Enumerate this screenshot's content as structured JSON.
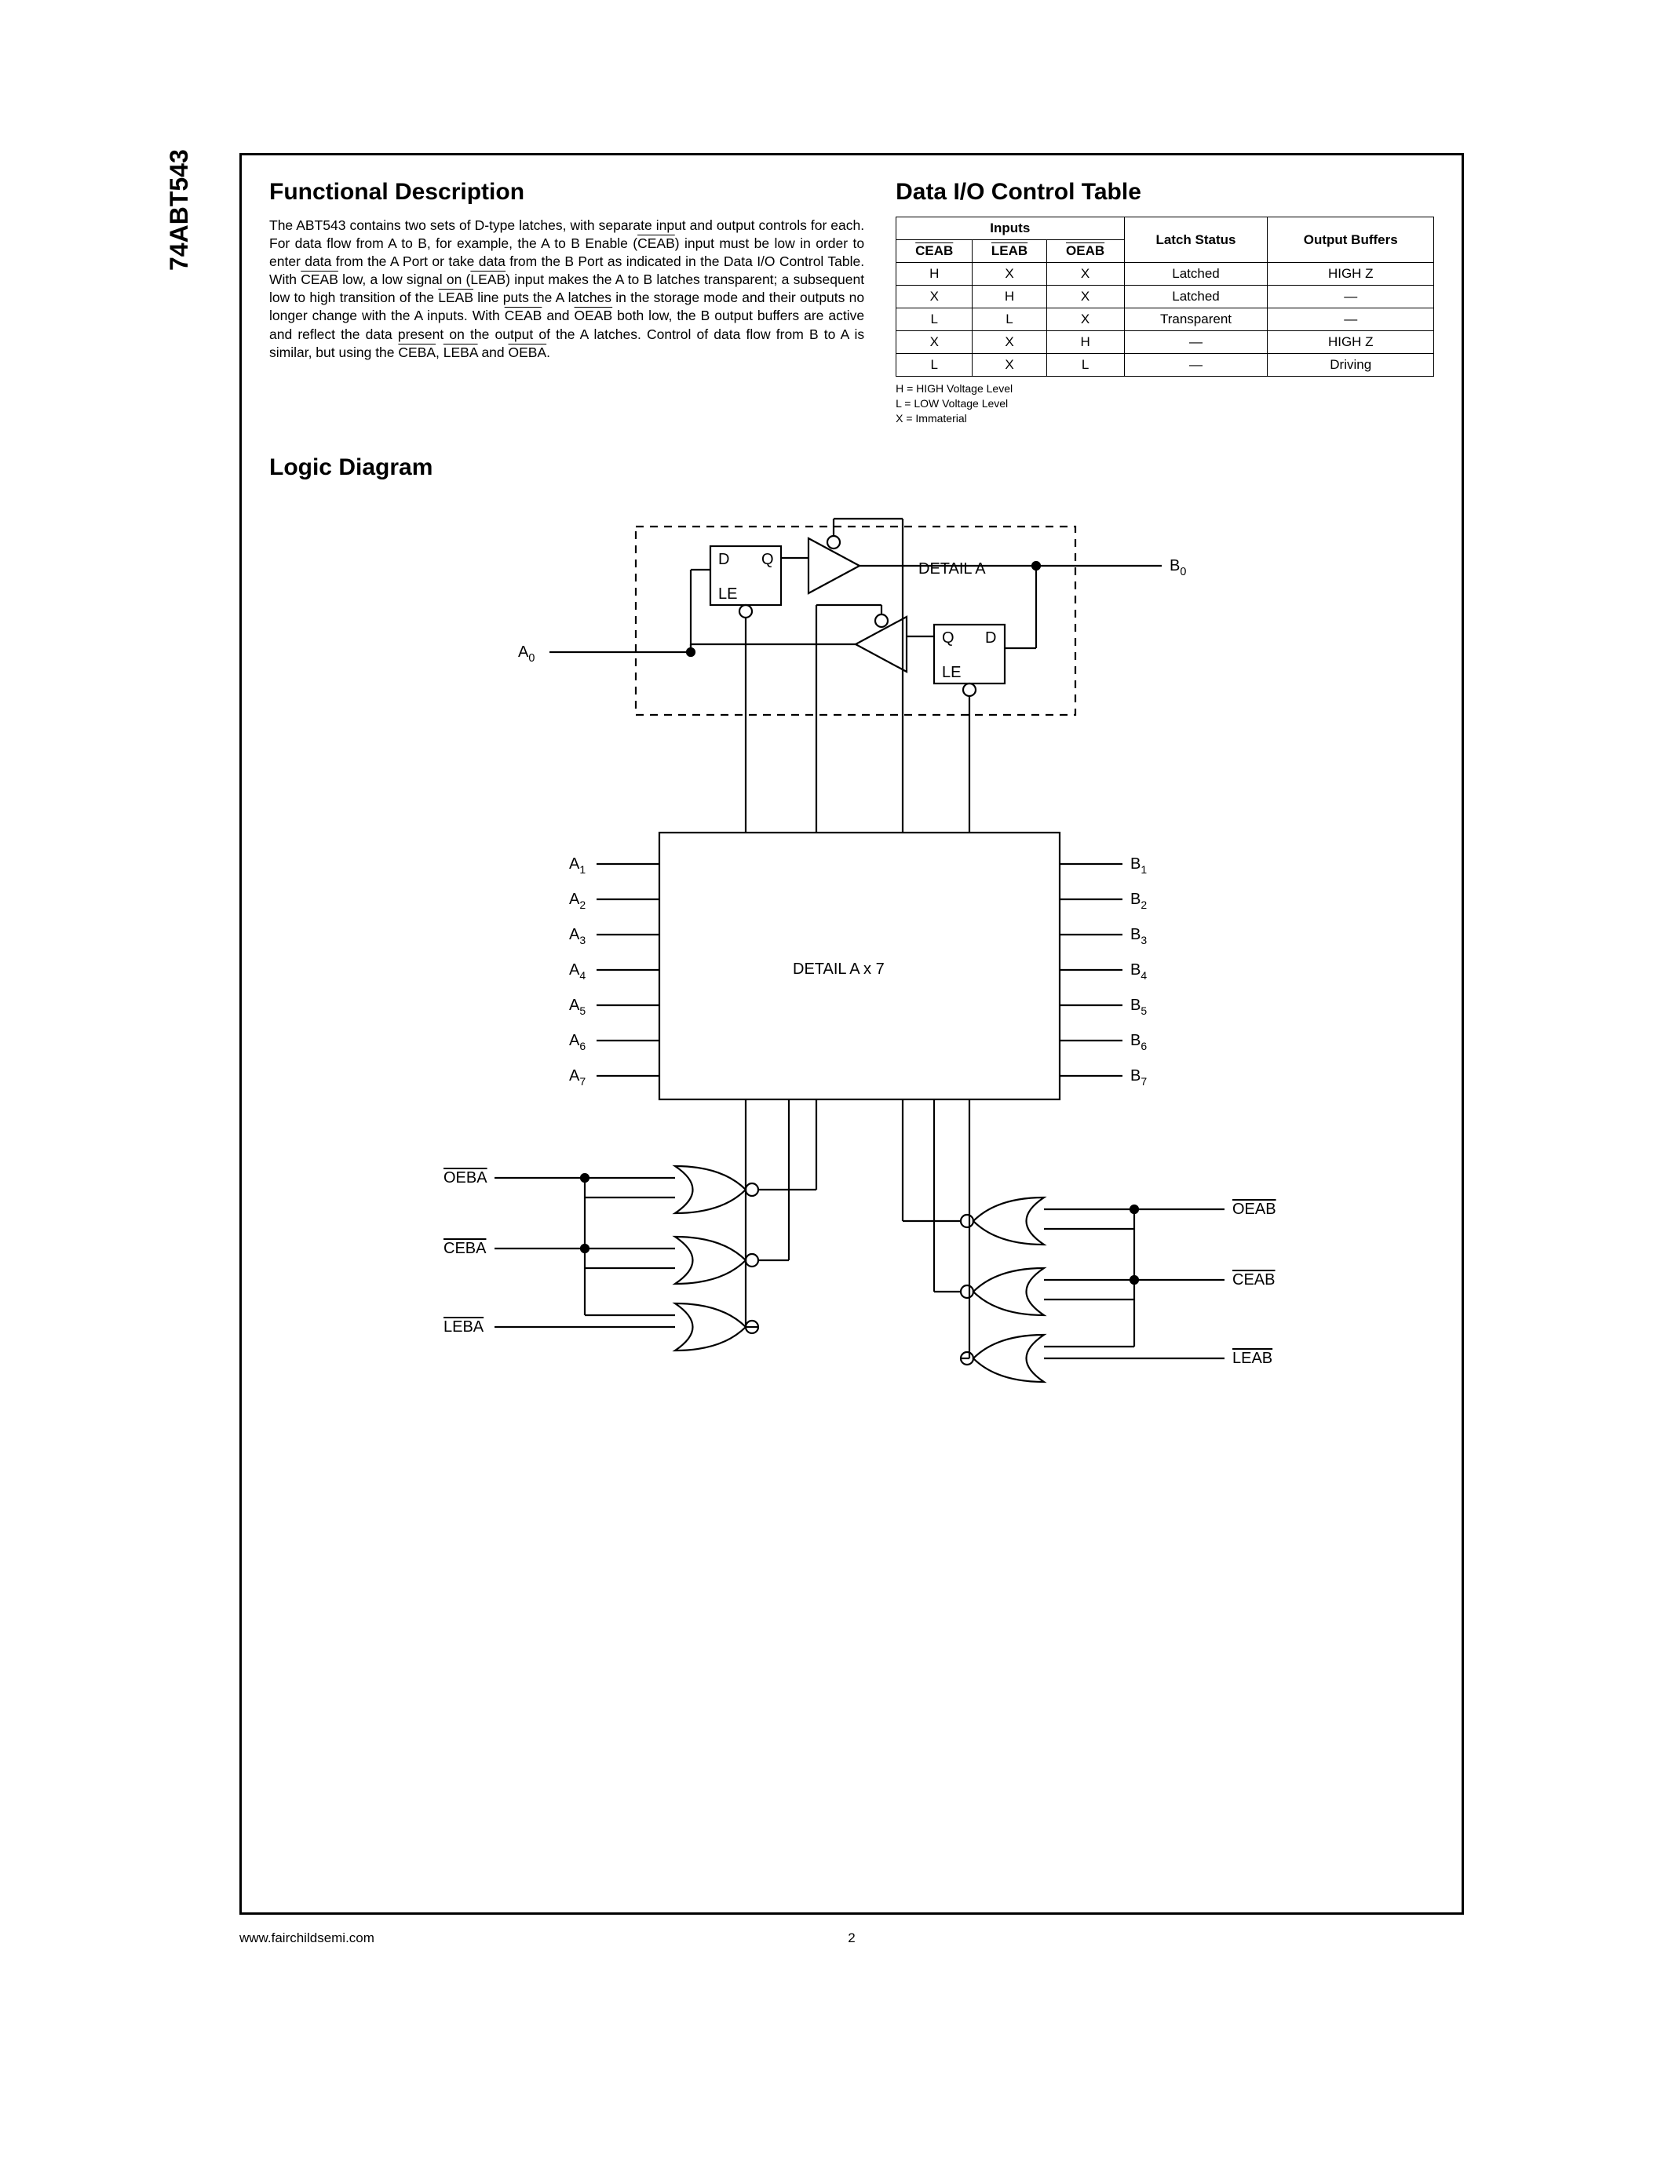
{
  "part_number": "74ABT543",
  "page_number": "2",
  "footer_url": "www.fairchildsemi.com",
  "sections": {
    "functional_description": {
      "heading": "Functional Description"
    },
    "data_io_table": {
      "heading": "Data I/O Control Table",
      "group_headers": [
        "Inputs",
        "Latch Status",
        "Output Buffers"
      ],
      "input_cols": [
        "CEAB",
        "LEAB",
        "OEAB"
      ],
      "rows": [
        {
          "ceab": "H",
          "leab": "X",
          "oeab": "X",
          "latch": "Latched",
          "out": "HIGH Z"
        },
        {
          "ceab": "X",
          "leab": "H",
          "oeab": "X",
          "latch": "Latched",
          "out": "—"
        },
        {
          "ceab": "L",
          "leab": "L",
          "oeab": "X",
          "latch": "Transparent",
          "out": "—"
        },
        {
          "ceab": "X",
          "leab": "X",
          "oeab": "H",
          "latch": "—",
          "out": "HIGH Z"
        },
        {
          "ceab": "L",
          "leab": "X",
          "oeab": "L",
          "latch": "—",
          "out": "Driving"
        }
      ],
      "legend": [
        "H = HIGH Voltage Level",
        "L = LOW Voltage Level",
        "X = Immaterial"
      ]
    },
    "logic_diagram": {
      "heading": "Logic Diagram",
      "detail_label": "DETAIL A",
      "block_label": "DETAIL A x 7",
      "left_pins": [
        "A1",
        "A2",
        "A3",
        "A4",
        "A5",
        "A6",
        "A7"
      ],
      "right_pins": [
        "B1",
        "B2",
        "B3",
        "B4",
        "B5",
        "B6",
        "B7"
      ],
      "a0": "A0",
      "b0": "B0",
      "latch_d": "D",
      "latch_q": "Q",
      "latch_le": "LE",
      "ctl_left": [
        "OEBA",
        "CEBA",
        "LEBA"
      ],
      "ctl_right": [
        "OEAB",
        "CEAB",
        "LEAB"
      ]
    }
  },
  "style": {
    "font_family": "Arial, Helvetica, sans-serif",
    "border_color": "#000000",
    "background": "#ffffff",
    "heading_fontsize_pt": 22,
    "body_fontsize_pt": 13,
    "table_fontsize_pt": 12.5,
    "legend_fontsize_pt": 10.5,
    "diagram_stroke": "#000000",
    "diagram_stroke_width": 2.2
  }
}
